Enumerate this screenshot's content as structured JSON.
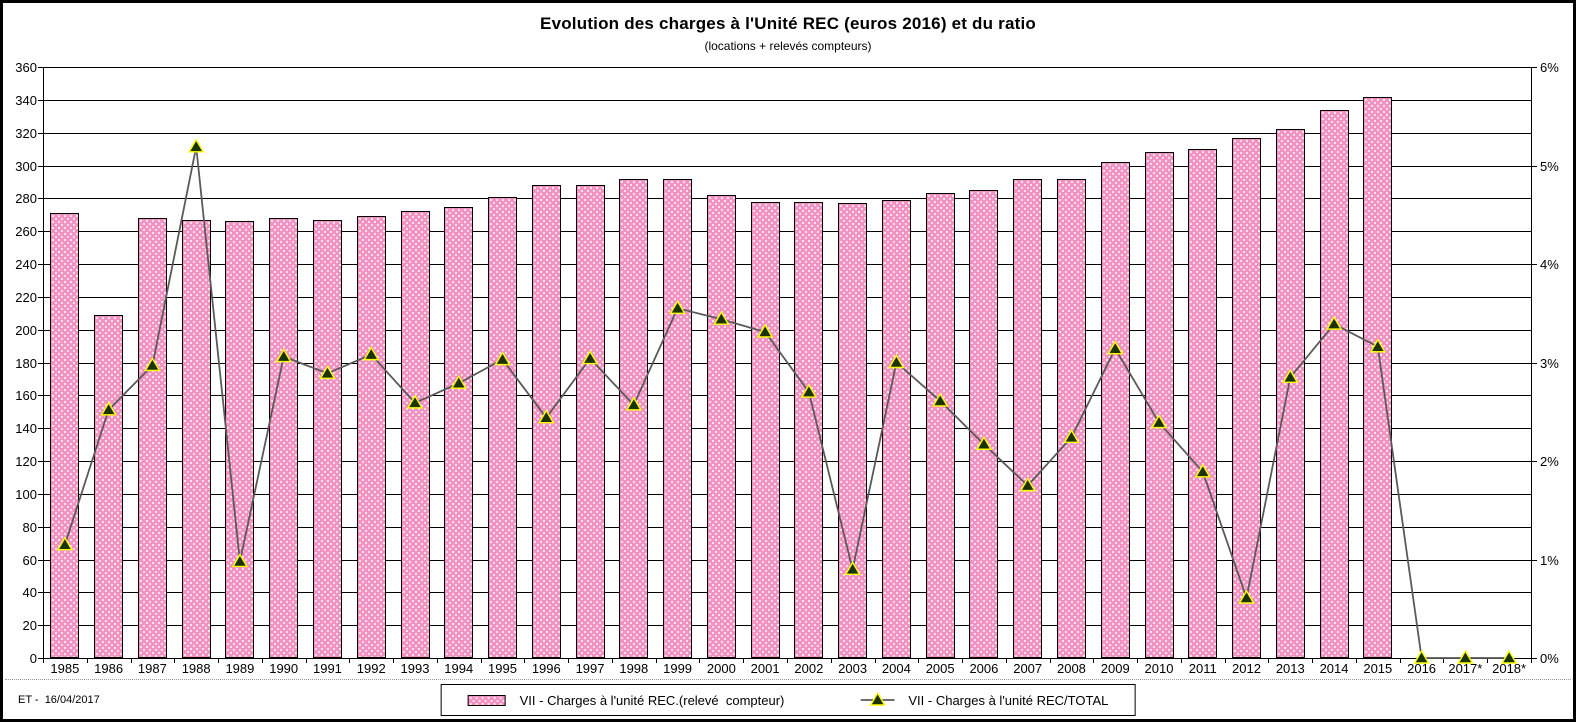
{
  "title": "Evolution des charges à l'Unité REC (euros 2016) et du ratio",
  "subtitle": "(locations + relevés compteurs)",
  "footer": "ET -  16/04/2017",
  "legend": {
    "bars_label": "VII - Charges à l'unité REC.(relevé  compteur)",
    "line_label": "VII - Charges à l'unité REC/TOTAL"
  },
  "colors": {
    "bar_fill": "#F290C0",
    "bar_dots": "#FFE3F1",
    "bar_border": "#000000",
    "ratio_line": "#5a5a5a",
    "marker_fill": "#1a3300",
    "marker_stroke": "#ffff00",
    "grid": "#000000",
    "text": "#000000",
    "plot_bg": "#ffffff"
  },
  "chart_data": {
    "type": "bar+line",
    "title": "Evolution des charges à l'Unité REC (euros 2016) et du ratio",
    "subtitle": "(locations + relevés compteurs)",
    "categories": [
      "1985",
      "1986",
      "1987",
      "1988",
      "1989",
      "1990",
      "1991",
      "1992",
      "1993",
      "1994",
      "1995",
      "1996",
      "1997",
      "1998",
      "1999",
      "2000",
      "2001",
      "2002",
      "2003",
      "2004",
      "2005",
      "2006",
      "2007",
      "2008",
      "2009",
      "2010",
      "2011",
      "2012",
      "2013",
      "2014",
      "2015",
      "2016",
      "2017*",
      "2018*"
    ],
    "series": [
      {
        "name": "VII - Charges à l'unité REC.(relevé  compteur)",
        "type": "bar",
        "axis": "left",
        "values": [
          271,
          209,
          268,
          267,
          266,
          268,
          267,
          269,
          272,
          275,
          281,
          288,
          288,
          292,
          292,
          282,
          278,
          278,
          277,
          279,
          283,
          285,
          292,
          292,
          302,
          308,
          310,
          317,
          322,
          334,
          342,
          0,
          0,
          0
        ]
      },
      {
        "name": "VII - Charges à l'unité REC/TOTAL",
        "type": "line",
        "axis": "right",
        "values_percent": [
          1.15,
          2.52,
          2.97,
          5.19,
          0.98,
          3.06,
          2.89,
          3.08,
          2.59,
          2.79,
          3.03,
          2.44,
          3.04,
          2.57,
          3.55,
          3.44,
          3.31,
          2.7,
          0.9,
          3.0,
          2.61,
          2.17,
          1.75,
          2.24,
          3.14,
          2.39,
          1.89,
          0.61,
          2.85,
          3.39,
          3.16,
          0,
          0,
          0
        ]
      }
    ],
    "left_axis": {
      "min": 0,
      "max": 360,
      "step": 20,
      "tick_labels": [
        "360",
        "340",
        "320",
        "300",
        "280",
        "260",
        "240",
        "220",
        "200",
        "180",
        "160",
        "140",
        "120",
        "100",
        "80",
        "60",
        "40",
        "20",
        "0"
      ]
    },
    "right_axis": {
      "min": 0,
      "max": 6,
      "step": 1,
      "tick_labels": [
        "6%",
        "5%",
        "4%",
        "3%",
        "2%",
        "1%",
        "0%"
      ]
    },
    "grid": "horizontal",
    "legend_position": "bottom"
  }
}
